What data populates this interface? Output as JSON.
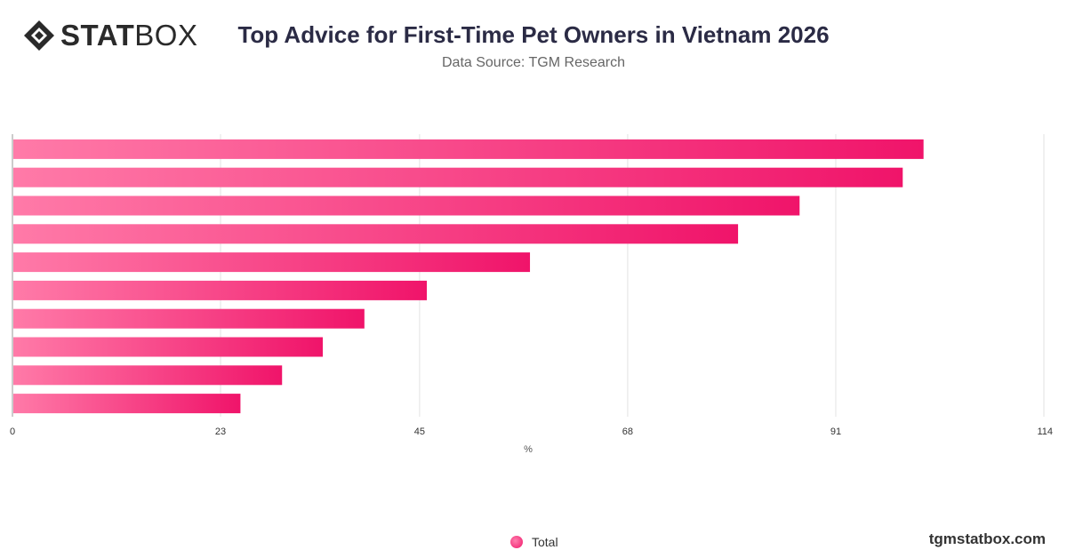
{
  "header": {
    "logo_bold": "STAT",
    "logo_light": "BOX",
    "title": "Top Advice for First-Time Pet Owners in Vietnam 2026",
    "subtitle": "Data Source: TGM Research"
  },
  "footer": {
    "site": "tgmstatbox.com"
  },
  "legend": {
    "label": "Total"
  },
  "colors": {
    "bar_start": "#ff7aa8",
    "bar_end": "#f0146a",
    "grid": "#e2e2e2",
    "axis_text": "#333333"
  },
  "chart_data": {
    "type": "bar",
    "orientation": "horizontal",
    "categories": [
      "",
      "",
      "",
      "",
      "",
      "",
      "",
      "",
      "",
      ""
    ],
    "series": [
      {
        "name": "Total",
        "values": [
          100.7,
          98.4,
          87,
          80.2,
          57.2,
          45.8,
          38.9,
          34.3,
          29.8,
          25.2
        ]
      }
    ],
    "x_ticks": [
      "0",
      "23",
      "45",
      "68",
      "91",
      "114"
    ],
    "xlabel": "%",
    "xlim": [
      0,
      114
    ],
    "grid": true,
    "legend_position": "bottom"
  }
}
